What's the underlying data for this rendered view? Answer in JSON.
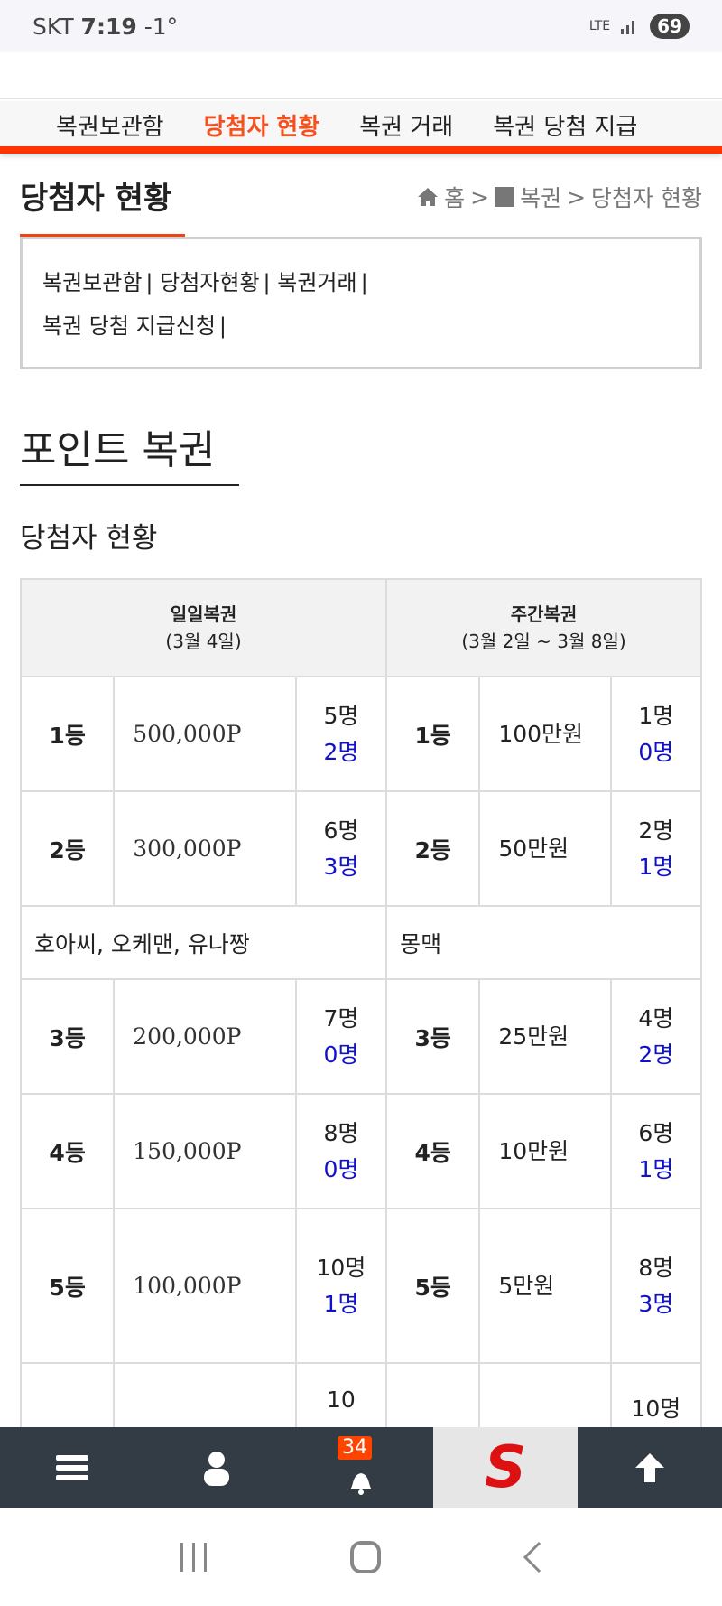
{
  "status": {
    "carrier": "SKT",
    "time": "7:19",
    "temp": "-1°",
    "network": "LTE",
    "battery": "69"
  },
  "nav": {
    "items": [
      "복권보관함",
      "당첨자 현황",
      "복권 거래",
      "복권 당첨 지급"
    ],
    "active": 1
  },
  "page_title": "당첨자 현황",
  "breadcrumb": [
    "홈",
    ">",
    "복권",
    ">",
    "당첨자 현황"
  ],
  "sublinks": [
    "복권보관함",
    "당첨자현황",
    "복권거래",
    "복권 당첨 지급신청"
  ],
  "section_title": "포인트 복권",
  "subsection_title": "당첨자 현황",
  "table": {
    "daily_header": "일일복권",
    "daily_date": "(3월 4일)",
    "weekly_header": "주간복권",
    "weekly_date": "(3월 2일 ~ 3월 8일)",
    "rows": [
      {
        "rank": "1등",
        "prize": "500,000P",
        "total": "5명",
        "won": "2명",
        "wrank": "1등",
        "wprize": "100만원",
        "wtotal": "1명",
        "wwon": "0명"
      },
      {
        "rank": "2등",
        "prize": "300,000P",
        "total": "6명",
        "won": "3명",
        "wrank": "2등",
        "wprize": "50만원",
        "wtotal": "2명",
        "wwon": "1명"
      },
      {
        "rank": "3등",
        "prize": "200,000P",
        "total": "7명",
        "won": "0명",
        "wrank": "3등",
        "wprize": "25만원",
        "wtotal": "4명",
        "wwon": "2명"
      },
      {
        "rank": "4등",
        "prize": "150,000P",
        "total": "8명",
        "won": "0명",
        "wrank": "4등",
        "wprize": "10만원",
        "wtotal": "6명",
        "wwon": "1명"
      },
      {
        "rank": "5등",
        "prize": "100,000P",
        "total": "10명",
        "won": "1명",
        "wrank": "5등",
        "wprize": "5만원",
        "wtotal": "8명",
        "wwon": "3명"
      }
    ],
    "daily_winners": "호아씨, 오케맨, 유나짱",
    "weekly_winners": "몽맥",
    "partial_row": {
      "total": "10",
      "wtotal": "10명"
    }
  },
  "bottom_bar": {
    "notification_count": "34",
    "logo": "S"
  },
  "colors": {
    "accent": "#ff3300",
    "active_nav": "#f4511e",
    "won_count": "#1111cc",
    "bar": "#333b44"
  }
}
